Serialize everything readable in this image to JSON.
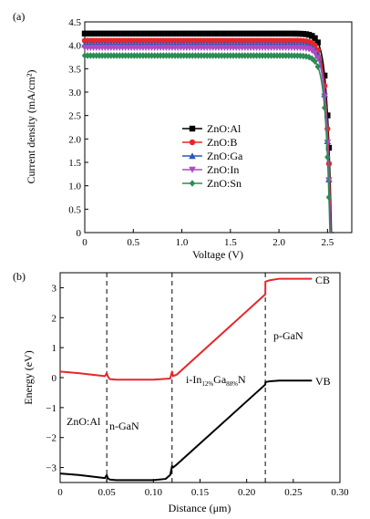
{
  "chart_data": [
    {
      "type": "line",
      "panel_label": "(a)",
      "xlabel": "Voltage (V)",
      "ylabel": "Current density (mA/cm²)",
      "xlim": [
        0,
        2.75
      ],
      "ylim": [
        0,
        4.5
      ],
      "xticks": [
        0,
        0.5,
        1.0,
        1.5,
        2.0,
        2.5
      ],
      "xtick_labels": [
        "0",
        "0.5",
        "1.0",
        "1.5",
        "2.0",
        "2.5"
      ],
      "yticks": [
        0,
        0.5,
        1.0,
        1.5,
        2.0,
        2.5,
        3.0,
        3.5,
        4.0,
        4.5
      ],
      "ytick_labels": [
        "0",
        "0.5",
        "1.0",
        "1.5",
        "2.0",
        "2.5",
        "3.0",
        "3.5",
        "4.0",
        "4.5"
      ],
      "legend_position": "center-right",
      "series": [
        {
          "name": "ZnO:Al",
          "color": "#000000",
          "marker": "square",
          "jsc": 4.25,
          "voc": 2.54
        },
        {
          "name": "ZnO:B",
          "color": "#e8262a",
          "marker": "circle",
          "jsc": 4.1,
          "voc": 2.535
        },
        {
          "name": "ZnO:Ga",
          "color": "#2e57b8",
          "marker": "triangle-up",
          "jsc": 4.01,
          "voc": 2.53
        },
        {
          "name": "ZnO:In",
          "color": "#b04ac4",
          "marker": "triangle-down",
          "jsc": 3.95,
          "voc": 2.53
        },
        {
          "name": "ZnO:Sn",
          "color": "#2e8b57",
          "marker": "diamond",
          "jsc": 3.78,
          "voc": 2.525
        }
      ]
    },
    {
      "type": "line",
      "panel_label": "(b)",
      "xlabel": "Distance (μm)",
      "ylabel": "Energy (eV)",
      "xlim": [
        0,
        0.3
      ],
      "ylim": [
        -3.5,
        3.5
      ],
      "xticks": [
        0,
        0.05,
        0.1,
        0.15,
        0.2,
        0.25,
        0.3
      ],
      "xtick_labels": [
        "0",
        "0.05",
        "0.10",
        "0.15",
        "0.20",
        "0.25",
        "0.30"
      ],
      "yticks": [
        -3,
        -2,
        -1,
        0,
        1,
        2,
        3
      ],
      "ytick_labels": [
        "−3",
        "−2",
        "−1",
        "0",
        "1",
        "2",
        "3"
      ],
      "boundaries": [
        0.05,
        0.12,
        0.22
      ],
      "series": [
        {
          "name": "CB",
          "color": "#e8262a",
          "x": [
            0,
            0.02,
            0.048,
            0.05,
            0.051,
            0.053,
            0.06,
            0.1,
            0.118,
            0.12,
            0.121,
            0.125,
            0.22,
            0.2201,
            0.225,
            0.235,
            0.245,
            0.27
          ],
          "y": [
            0.2,
            0.15,
            0.05,
            0.15,
            0.05,
            -0.05,
            -0.07,
            -0.07,
            -0.03,
            0.2,
            0.05,
            0.1,
            2.78,
            3.2,
            3.25,
            3.3,
            3.3,
            3.3
          ]
        },
        {
          "name": "VB",
          "color": "#000000",
          "x": [
            0,
            0.02,
            0.048,
            0.05,
            0.051,
            0.053,
            0.06,
            0.1,
            0.113,
            0.118,
            0.12,
            0.121,
            0.125,
            0.22,
            0.2201,
            0.225,
            0.235,
            0.245,
            0.27
          ],
          "y": [
            -3.2,
            -3.25,
            -3.35,
            -3.25,
            -3.35,
            -3.4,
            -3.42,
            -3.42,
            -3.38,
            -3.25,
            -2.95,
            -3.0,
            -2.9,
            -0.23,
            -0.15,
            -0.12,
            -0.1,
            -0.1,
            -0.1
          ]
        }
      ],
      "labels": {
        "cb": "CB",
        "vb": "VB",
        "zno": "ZnO:Al",
        "ngan": "n-GaN",
        "pgan": "p-GaN",
        "igan_base1": "i-In",
        "igan_sub1": "12%",
        "igan_base2": "Ga",
        "igan_sub2": "88%",
        "igan_base3": "N"
      }
    }
  ]
}
